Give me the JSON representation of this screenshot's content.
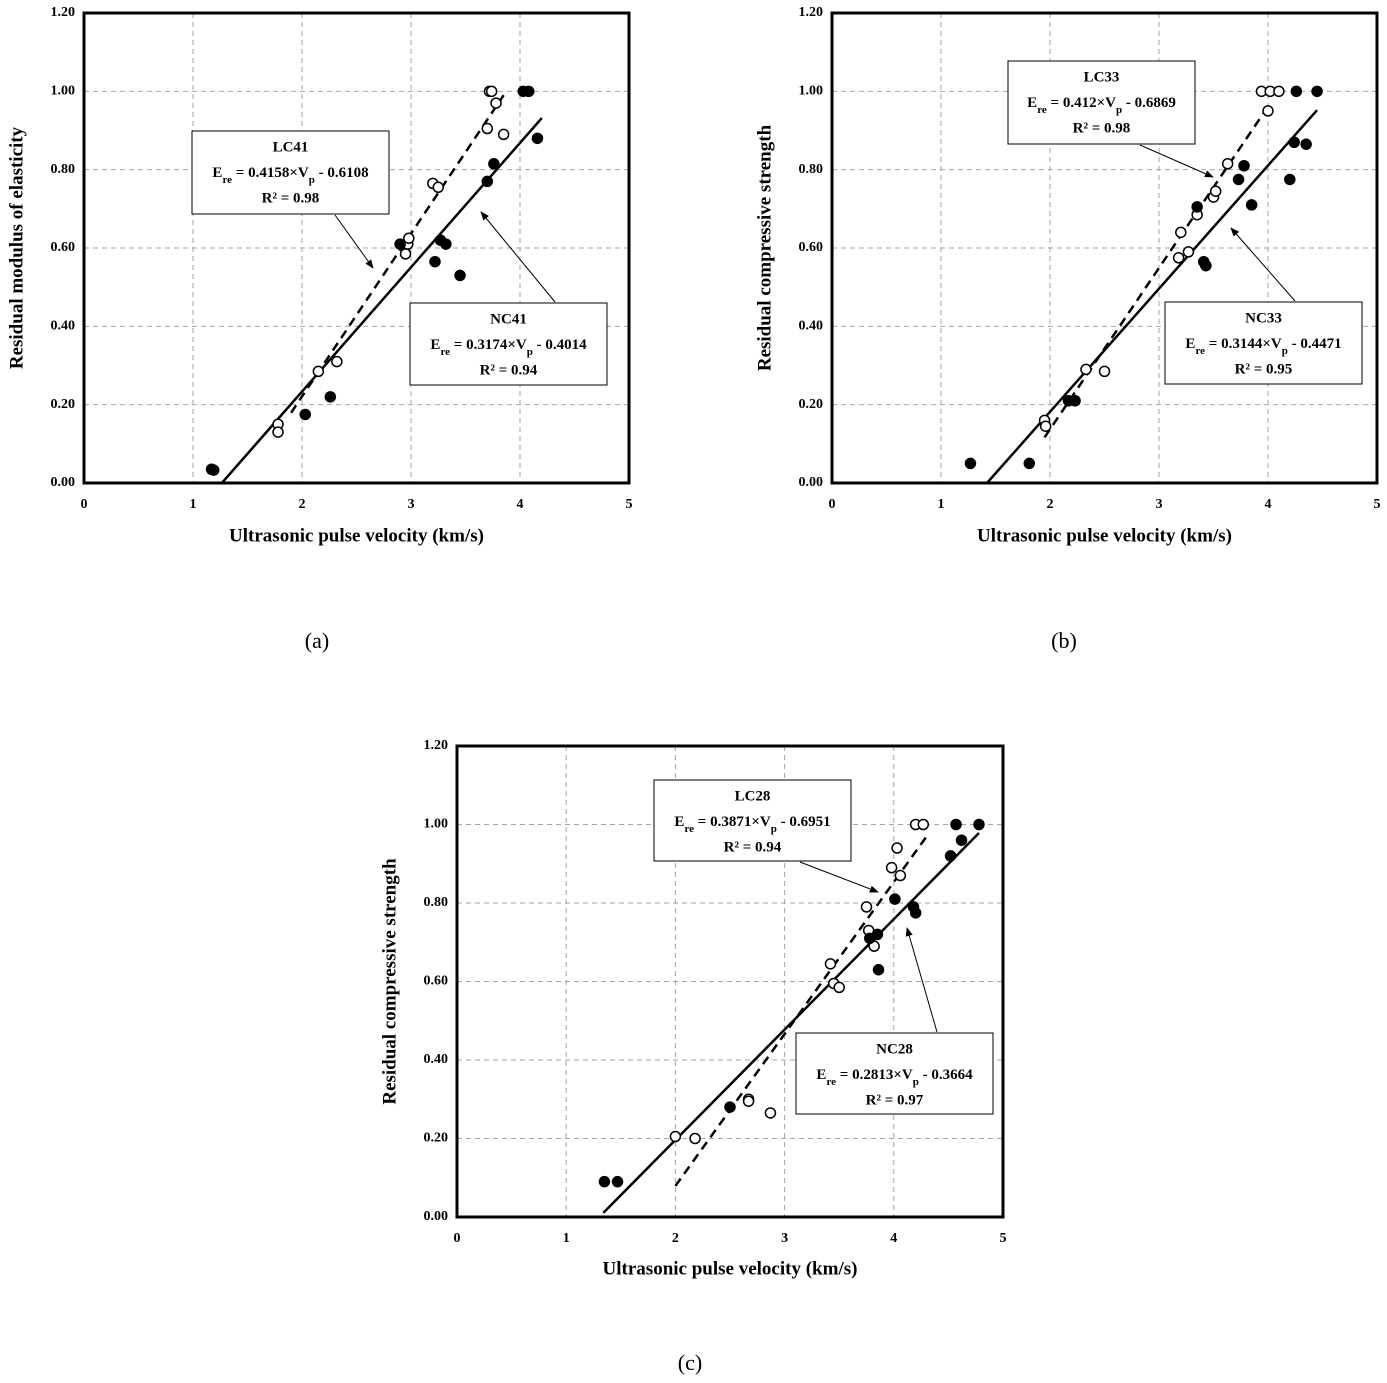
{
  "chart_data": [
    {
      "type": "scatter",
      "caption": "(a)",
      "xlabel": "Ultrasonic pulse velocity (km/s)",
      "ylabel": "Residual modulus of elasticity",
      "xlim": [
        0,
        5
      ],
      "ylim": [
        0,
        1.2
      ],
      "xticks": [
        0,
        1,
        2,
        3,
        4,
        5
      ],
      "yticks": [
        {
          "value": 0,
          "label": "0.00"
        },
        {
          "value": 0.2,
          "label": "0.20"
        },
        {
          "value": 0.4,
          "label": "0.40"
        },
        {
          "value": 0.6,
          "label": "0.60"
        },
        {
          "value": 0.8,
          "label": "0.80"
        },
        {
          "value": 1,
          "label": "1.00"
        },
        {
          "value": 1.2,
          "label": "1.20"
        }
      ],
      "grid": true,
      "series": [
        {
          "name": "LC41",
          "marker": "open",
          "color": "#000000",
          "x": [
            1.78,
            1.78,
            2.15,
            2.32,
            2.95,
            2.97,
            2.98,
            3.2,
            3.25,
            3.7,
            3.72,
            3.78,
            3.85,
            3.74
          ],
          "values": [
            0.15,
            0.13,
            0.285,
            0.31,
            0.585,
            0.61,
            0.625,
            0.765,
            0.755,
            0.905,
            1.0,
            0.97,
            0.89,
            1.0
          ],
          "fit": {
            "style": "dashed",
            "slope": 0.4158,
            "intercept": -0.6108,
            "x": [
              1.9,
              3.85
            ]
          },
          "equation": {
            "lhs": "E",
            "lhs_sub": "re",
            "mid": " = 0.4158×V",
            "mid_sub": "p",
            "tail": " - 0.6108",
            "r2": "R² = 0.98"
          }
        },
        {
          "name": "NC41",
          "marker": "filled",
          "color": "#000000",
          "x": [
            1.17,
            1.19,
            2.03,
            2.26,
            2.9,
            3.22,
            3.27,
            3.32,
            3.45,
            3.7,
            3.76,
            4.03,
            4.08,
            4.16
          ],
          "values": [
            0.035,
            0.033,
            0.175,
            0.22,
            0.61,
            0.565,
            0.62,
            0.61,
            0.53,
            0.77,
            0.815,
            1.0,
            1.0,
            0.88
          ],
          "fit": {
            "style": "solid",
            "slope": 0.3174,
            "intercept": -0.4014,
            "x": [
              1.265,
              4.2
            ]
          },
          "equation": {
            "lhs": "E",
            "lhs_sub": "re",
            "mid": " = 0.3174×V",
            "mid_sub": "p",
            "tail": " - 0.4014",
            "r2": "R² = 0.94"
          }
        }
      ]
    },
    {
      "type": "scatter",
      "caption": "(b)",
      "xlabel": "Ultrasonic pulse velocity (km/s)",
      "ylabel": "Residual compressive strength",
      "xlim": [
        0,
        5
      ],
      "ylim": [
        0,
        1.2
      ],
      "xticks": [
        0,
        1,
        2,
        3,
        4,
        5
      ],
      "yticks": [
        {
          "value": 0,
          "label": "0.00"
        },
        {
          "value": 0.2,
          "label": "0.20"
        },
        {
          "value": 0.4,
          "label": "0.40"
        },
        {
          "value": 0.6,
          "label": "0.60"
        },
        {
          "value": 0.8,
          "label": "0.80"
        },
        {
          "value": 1,
          "label": "1.00"
        },
        {
          "value": 1.2,
          "label": "1.20"
        }
      ],
      "grid": true,
      "series": [
        {
          "name": "LC33",
          "marker": "open",
          "color": "#000000",
          "x": [
            1.95,
            1.96,
            2.33,
            2.5,
            3.18,
            3.2,
            3.27,
            3.35,
            3.5,
            3.52,
            3.63,
            3.94,
            4.0,
            4.02,
            4.1
          ],
          "values": [
            0.16,
            0.145,
            0.29,
            0.285,
            0.575,
            0.64,
            0.59,
            0.685,
            0.73,
            0.745,
            0.815,
            1.0,
            0.95,
            1.0,
            1.0
          ],
          "fit": {
            "style": "dashed",
            "slope": 0.412,
            "intercept": -0.6869,
            "x": [
              1.95,
              3.97
            ]
          },
          "equation": {
            "lhs": "E",
            "lhs_sub": "re",
            "mid": " = 0.412×V",
            "mid_sub": "p",
            "tail": " - 0.6869",
            "r2": "R² = 0.98"
          }
        },
        {
          "name": "NC33",
          "marker": "filled",
          "color": "#000000",
          "x": [
            1.27,
            1.81,
            2.17,
            2.23,
            3.35,
            3.41,
            3.43,
            3.73,
            3.78,
            3.85,
            4.2,
            4.24,
            4.26,
            4.35,
            4.45
          ],
          "values": [
            0.05,
            0.05,
            0.21,
            0.21,
            0.705,
            0.565,
            0.555,
            0.775,
            0.81,
            0.71,
            0.775,
            0.87,
            1.0,
            0.865,
            1.0
          ],
          "fit": {
            "style": "solid",
            "slope": 0.3144,
            "intercept": -0.4471,
            "x": [
              1.42,
              4.45
            ]
          },
          "equation": {
            "lhs": "E",
            "lhs_sub": "re",
            "mid": " = 0.3144×V",
            "mid_sub": "p",
            "tail": " - 0.4471",
            "r2": "R² = 0.95"
          }
        }
      ]
    },
    {
      "type": "scatter",
      "caption": "(c)",
      "xlabel": "Ultrasonic pulse velocity (km/s)",
      "ylabel": "Residual compressive strength",
      "xlim": [
        0,
        5
      ],
      "ylim": [
        0,
        1.2
      ],
      "xticks": [
        0,
        1,
        2,
        3,
        4,
        5
      ],
      "yticks": [
        {
          "value": 0,
          "label": "0.00"
        },
        {
          "value": 0.2,
          "label": "0.20"
        },
        {
          "value": 0.4,
          "label": "0.40"
        },
        {
          "value": 0.6,
          "label": "0.60"
        },
        {
          "value": 0.8,
          "label": "0.80"
        },
        {
          "value": 1,
          "label": "1.00"
        },
        {
          "value": 1.2,
          "label": "1.20"
        }
      ],
      "grid": true,
      "series": [
        {
          "name": "LC28",
          "marker": "open",
          "color": "#000000",
          "x": [
            2.0,
            2.18,
            2.67,
            2.67,
            2.87,
            3.42,
            3.45,
            3.5,
            3.75,
            3.77,
            3.82,
            3.98,
            4.03,
            4.06,
            4.2,
            4.27
          ],
          "values": [
            0.205,
            0.2,
            0.3,
            0.295,
            0.265,
            0.645,
            0.595,
            0.585,
            0.79,
            0.73,
            0.69,
            0.89,
            0.94,
            0.87,
            1.0,
            1.0
          ],
          "fit": {
            "style": "dashed",
            "slope": 0.3871,
            "intercept": -0.6951,
            "x": [
              2.0,
              4.3
            ]
          },
          "equation": {
            "lhs": "E",
            "lhs_sub": "re",
            "mid": " = 0.3871×V",
            "mid_sub": "p",
            "tail": " - 0.6951",
            "r2": "R² = 0.94"
          }
        },
        {
          "name": "NC28",
          "marker": "filled",
          "color": "#000000",
          "x": [
            1.35,
            1.47,
            2.5,
            3.78,
            3.85,
            3.86,
            4.01,
            4.18,
            4.2,
            4.52,
            4.57,
            4.62,
            4.78
          ],
          "values": [
            0.09,
            0.09,
            0.28,
            0.71,
            0.72,
            0.63,
            0.81,
            0.79,
            0.775,
            0.92,
            1.0,
            0.96,
            1.0
          ],
          "fit": {
            "style": "solid",
            "slope": 0.2813,
            "intercept": -0.3664,
            "x": [
              1.34,
              4.78
            ]
          },
          "equation": {
            "lhs": "E",
            "lhs_sub": "re",
            "mid": " = 0.2813×V",
            "mid_sub": "p",
            "tail": " - 0.3664",
            "r2": "R² = 0.97"
          }
        }
      ]
    }
  ]
}
